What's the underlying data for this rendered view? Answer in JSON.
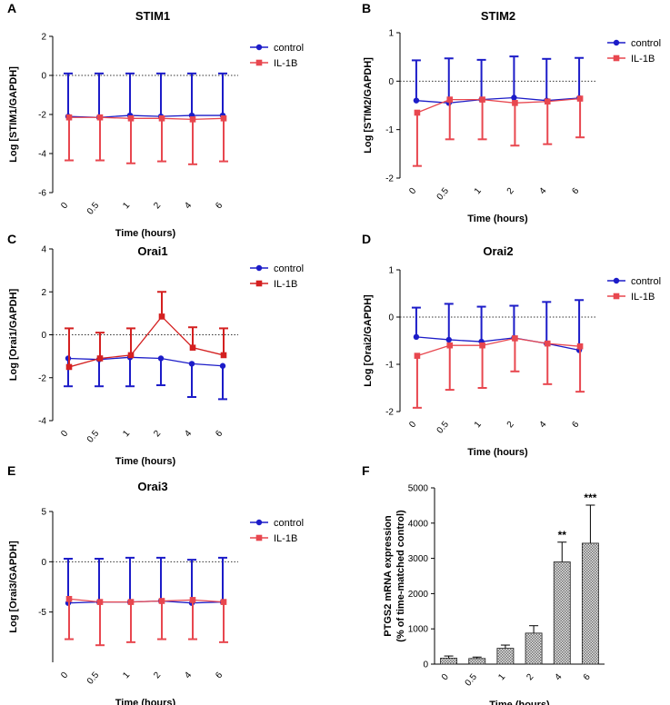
{
  "chart_data": [
    {
      "panel": "A",
      "type": "line",
      "title": "STIM1",
      "xlabel": "Time (hours)",
      "ylabel": "Log [STIM1/GAPDH]",
      "categories": [
        "0",
        "0.5",
        "1",
        "2",
        "4",
        "6"
      ],
      "ylim": [
        -6,
        2
      ],
      "yticks": [
        "2",
        "0",
        "-2",
        "-4",
        "-6"
      ],
      "reference_line": 0,
      "series": [
        {
          "name": "control",
          "color": "#1c1cc8",
          "marker": "circle",
          "values": [
            -2.1,
            -2.15,
            -2.05,
            -2.1,
            -2.05,
            -2.05
          ],
          "err_up": [
            2.2,
            2.25,
            2.15,
            2.2,
            2.15,
            2.15
          ],
          "err_down": [
            0,
            0,
            0,
            0,
            0,
            0
          ]
        },
        {
          "name": "IL-1B",
          "color": "#e8474f",
          "marker": "square",
          "values": [
            -2.15,
            -2.15,
            -2.2,
            -2.2,
            -2.25,
            -2.2
          ],
          "err_up": [
            0,
            0,
            0,
            0,
            0,
            0
          ],
          "err_down": [
            2.2,
            2.2,
            2.3,
            2.2,
            2.3,
            2.2
          ]
        }
      ]
    },
    {
      "panel": "B",
      "type": "line",
      "title": "STIM2",
      "xlabel": "Time (hours)",
      "ylabel": "Log [STIM2/GAPDH]",
      "categories": [
        "0",
        "0.5",
        "1",
        "2",
        "4",
        "6"
      ],
      "ylim": [
        -2,
        1
      ],
      "yticks": [
        "1",
        "0",
        "-1",
        "-2"
      ],
      "reference_line": 0,
      "series": [
        {
          "name": "control",
          "color": "#1c1cc8",
          "marker": "circle",
          "values": [
            -0.4,
            -0.45,
            -0.38,
            -0.34,
            -0.4,
            -0.35
          ],
          "err_up": [
            0.83,
            0.92,
            0.82,
            0.85,
            0.86,
            0.83
          ],
          "err_down": [
            0,
            0,
            0,
            0,
            0,
            0
          ]
        },
        {
          "name": "IL-1B",
          "color": "#e8474f",
          "marker": "square",
          "values": [
            -0.65,
            -0.38,
            -0.38,
            -0.45,
            -0.42,
            -0.36
          ],
          "err_up": [
            0,
            0,
            0,
            0,
            0,
            0
          ],
          "err_down": [
            1.1,
            0.82,
            0.82,
            0.88,
            0.88,
            0.8
          ]
        }
      ]
    },
    {
      "panel": "C",
      "type": "line",
      "title": "Orai1",
      "xlabel": "Time (hours)",
      "ylabel": "Log [Orai1/GAPDH]",
      "categories": [
        "0",
        "0.5",
        "1",
        "2",
        "4",
        "6"
      ],
      "ylim": [
        -4,
        4
      ],
      "yticks": [
        "4",
        "2",
        "0",
        "-2",
        "-4"
      ],
      "reference_line": 0,
      "series": [
        {
          "name": "control",
          "color": "#1c1cc8",
          "marker": "circle",
          "values": [
            -1.1,
            -1.15,
            -1.05,
            -1.1,
            -1.35,
            -1.45
          ],
          "err_up": [
            0,
            0,
            0,
            0,
            0,
            0
          ],
          "err_down": [
            1.3,
            1.25,
            1.35,
            1.25,
            1.55,
            1.55
          ]
        },
        {
          "name": "IL-1B",
          "color": "#d42020",
          "marker": "square",
          "values": [
            -1.5,
            -1.1,
            -0.95,
            0.85,
            -0.6,
            -0.95
          ],
          "err_up": [
            1.8,
            1.2,
            1.25,
            1.15,
            0.95,
            1.25
          ],
          "err_down": [
            0,
            0,
            0,
            0,
            0,
            0
          ]
        }
      ]
    },
    {
      "panel": "D",
      "type": "line",
      "title": "Orai2",
      "xlabel": "Time (hours)",
      "ylabel": "Log [Orai2/GAPDH]",
      "categories": [
        "0",
        "0.5",
        "1",
        "2",
        "4",
        "6"
      ],
      "ylim": [
        -2,
        1
      ],
      "yticks": [
        "1",
        "0",
        "-1",
        "-2"
      ],
      "reference_line": 0,
      "series": [
        {
          "name": "control",
          "color": "#1c1cc8",
          "marker": "circle",
          "values": [
            -0.42,
            -0.48,
            -0.52,
            -0.44,
            -0.56,
            -0.7
          ],
          "err_up": [
            0.62,
            0.76,
            0.74,
            0.68,
            0.88,
            1.06
          ],
          "err_down": [
            0,
            0,
            0,
            0,
            0,
            0
          ]
        },
        {
          "name": "IL-1B",
          "color": "#e8474f",
          "marker": "square",
          "values": [
            -0.82,
            -0.6,
            -0.6,
            -0.45,
            -0.56,
            -0.62
          ],
          "err_up": [
            0,
            0,
            0,
            0,
            0,
            0
          ],
          "err_down": [
            1.1,
            0.94,
            0.9,
            0.7,
            0.86,
            0.96
          ]
        }
      ]
    },
    {
      "panel": "E",
      "type": "line",
      "title": "Orai3",
      "xlabel": "Time (hours)",
      "ylabel": "Log [Orai3/GAPDH]",
      "categories": [
        "0",
        "0.5",
        "1",
        "2",
        "4",
        "6"
      ],
      "ylim": [
        -10,
        5
      ],
      "yticks": [
        "5",
        "0",
        "-5"
      ],
      "reference_line": 0,
      "series": [
        {
          "name": "control",
          "color": "#1c1cc8",
          "marker": "circle",
          "values": [
            -4.1,
            -4.0,
            -4.0,
            -3.9,
            -4.1,
            -4.0
          ],
          "err_up": [
            4.4,
            4.3,
            4.4,
            4.3,
            4.3,
            4.4
          ],
          "err_down": [
            0,
            0,
            0,
            0,
            0,
            0
          ]
        },
        {
          "name": "IL-1B",
          "color": "#e8474f",
          "marker": "square",
          "values": [
            -3.7,
            -4.0,
            -4.0,
            -3.9,
            -3.8,
            -4.0
          ],
          "err_up": [
            0,
            0,
            0,
            0,
            0,
            0
          ],
          "err_down": [
            4.0,
            4.3,
            4.0,
            3.8,
            3.9,
            4.0
          ]
        }
      ]
    },
    {
      "panel": "F",
      "type": "bar",
      "title": "",
      "xlabel": "Time (hours)",
      "ylabel_lines": [
        "PTGS2 mRNA expression",
        "(% of time-matched control)"
      ],
      "categories": [
        "0",
        "0.5",
        "1",
        "2",
        "4",
        "6"
      ],
      "ylim": [
        0,
        5000
      ],
      "yticks": [
        "5000",
        "4000",
        "3000",
        "2000",
        "1000",
        "0"
      ],
      "values": [
        170,
        160,
        450,
        880,
        2900,
        3430
      ],
      "err_up": [
        60,
        40,
        90,
        210,
        560,
        1080
      ],
      "annotations": [
        "",
        "",
        "",
        "",
        "**",
        "***"
      ],
      "bar_fill": "#9a9a9a"
    }
  ]
}
